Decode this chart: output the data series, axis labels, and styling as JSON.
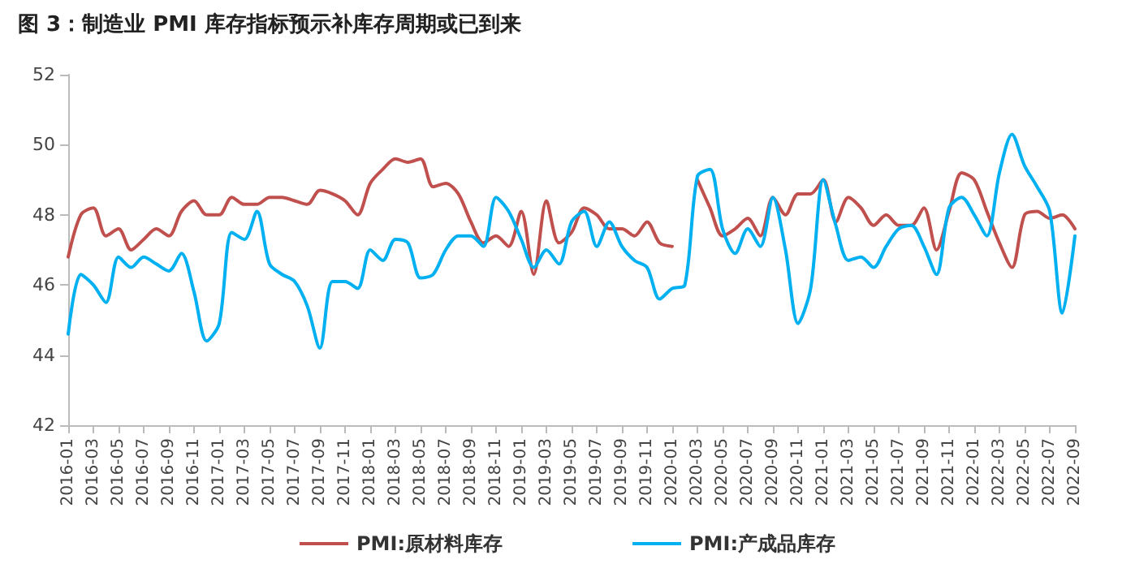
{
  "chart_data": {
    "type": "line",
    "title": "图 3：制造业 PMI 库存指标预示补库存周期或已到来",
    "categories": [
      "2016-01",
      null,
      "2016-03",
      null,
      "2016-05",
      null,
      "2016-07",
      null,
      "2016-09",
      null,
      "2016-11",
      null,
      "2017-01",
      null,
      "2017-03",
      null,
      "2017-05",
      null,
      "2017-07",
      null,
      "2017-09",
      null,
      "2017-11",
      null,
      "2018-01",
      null,
      "2018-03",
      null,
      "2018-05",
      null,
      "2018-07",
      null,
      "2018-09",
      null,
      "2018-11",
      null,
      "2019-01",
      null,
      "2019-03",
      null,
      "2019-05",
      null,
      "2019-07",
      null,
      "2019-09",
      null,
      "2019-11",
      null,
      "2020-01",
      null,
      "2020-03",
      null,
      "2020-05",
      null,
      "2020-07",
      null,
      "2020-09",
      null,
      "2020-11",
      null,
      "2021-01",
      null,
      "2021-03",
      null,
      "2021-05",
      null,
      "2021-07",
      null,
      "2021-09",
      null,
      "2021-11",
      null,
      "2022-01",
      null,
      "2022-03",
      null,
      "2022-05",
      null,
      "2022-07",
      null,
      "2022-09"
    ],
    "series": [
      {
        "name": "PMI:原材料库存",
        "color": "#c0504d",
        "values": [
          46.8,
          48.0,
          48.2,
          47.4,
          47.6,
          47.0,
          47.3,
          47.6,
          47.4,
          48.1,
          48.4,
          48.0,
          48.0,
          48.5,
          48.3,
          48.3,
          48.5,
          48.5,
          48.4,
          48.3,
          48.7,
          48.6,
          48.4,
          48.0,
          48.9,
          49.3,
          49.6,
          49.5,
          49.6,
          48.8,
          48.9,
          48.6,
          47.8,
          47.2,
          47.4,
          47.1,
          48.1,
          46.3,
          48.4,
          47.2,
          47.5,
          48.2,
          48.0,
          47.6,
          47.6,
          47.4,
          47.8,
          47.2,
          47.1,
          null,
          49.0,
          48.2,
          47.4,
          47.6,
          47.9,
          47.4,
          48.5,
          48.0,
          48.6,
          48.6,
          49.0,
          47.8,
          48.5,
          48.2,
          47.7,
          48.0,
          47.7,
          47.7,
          48.2,
          47.0,
          48.1,
          49.2,
          49.0,
          48.1,
          47.2,
          46.5,
          48.0,
          48.1,
          47.9,
          48.0,
          47.6
        ]
      },
      {
        "name": "PMI:产成品库存",
        "color": "#00b0f0",
        "values": [
          44.6,
          46.3,
          46.0,
          45.5,
          46.8,
          46.5,
          46.8,
          46.6,
          46.4,
          46.9,
          45.8,
          44.4,
          44.9,
          47.5,
          47.3,
          48.1,
          46.6,
          46.3,
          46.1,
          45.4,
          44.2,
          46.1,
          46.1,
          45.9,
          47.0,
          46.7,
          47.3,
          47.2,
          46.2,
          46.3,
          47.0,
          47.4,
          47.4,
          47.1,
          48.5,
          48.1,
          47.3,
          46.5,
          47.0,
          46.6,
          47.8,
          48.1,
          47.1,
          47.8,
          47.1,
          46.7,
          46.5,
          45.6,
          45.9,
          46.0,
          49.1,
          49.3,
          47.6,
          46.9,
          47.6,
          47.1,
          48.5,
          47.0,
          44.9,
          45.9,
          49.0,
          47.7,
          46.7,
          46.8,
          46.5,
          47.1,
          47.6,
          47.7,
          47.1,
          46.3,
          48.2,
          48.5,
          48.0,
          47.4,
          49.2,
          50.3,
          49.4,
          48.8,
          48.1,
          45.2,
          47.4
        ]
      }
    ],
    "ylim": [
      42,
      52
    ],
    "yticks": [
      42,
      44,
      46,
      48,
      50,
      52
    ],
    "grid": false,
    "legend": "bottom",
    "marker": "none",
    "line_style": "solid"
  }
}
